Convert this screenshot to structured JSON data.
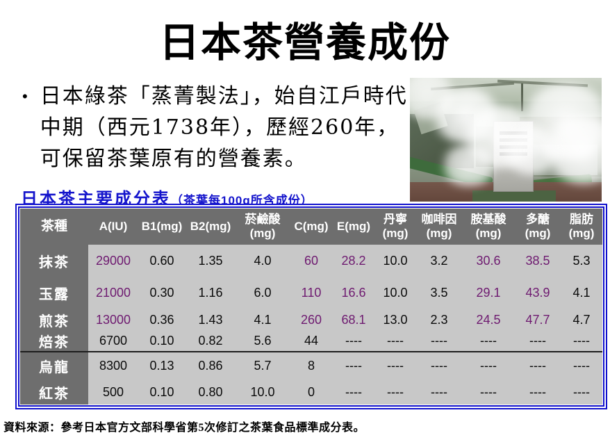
{
  "slide": {
    "title": "日本茶營養成份",
    "bullet_marker": "•",
    "bullet_text": "日本綠茶「蒸菁製法」，始自江戶時代中期（西元1738年），歷經260年，可保留茶葉原有的營養素。"
  },
  "table_heading": {
    "main": "日本茶主要成分表",
    "sub": "（茶葉每100g所含成份）"
  },
  "table": {
    "headers": [
      [
        "茶種"
      ],
      [
        "A(IU)"
      ],
      [
        "B1(mg)"
      ],
      [
        "B2(mg)"
      ],
      [
        "菸鹼酸",
        "(mg)"
      ],
      [
        "C(mg)"
      ],
      [
        "E(mg)"
      ],
      [
        "丹寧",
        "(mg)"
      ],
      [
        "咖啡因",
        "(mg)"
      ],
      [
        "胺基酸",
        "(mg)"
      ],
      [
        "多醣",
        "(mg)"
      ],
      [
        "脂肪",
        "(mg)"
      ]
    ],
    "rows": [
      {
        "label": "抹茶",
        "values": [
          "29000",
          "0.60",
          "1.35",
          "4.0",
          "60",
          "28.2",
          "10.0",
          "3.2",
          "30.6",
          "38.5",
          "5.3"
        ]
      },
      {
        "label": "玉露",
        "values": [
          "21000",
          "0.30",
          "1.16",
          "6.0",
          "110",
          "16.6",
          "10.0",
          "3.5",
          "29.1",
          "43.9",
          "4.1"
        ]
      },
      {
        "label": "煎茶",
        "values": [
          "13000",
          "0.36",
          "1.43",
          "4.1",
          "260",
          "68.1",
          "13.0",
          "2.3",
          "24.5",
          "47.7",
          "4.7"
        ]
      },
      {
        "label": "焙茶",
        "values": [
          "6700",
          "0.10",
          "0.82",
          "5.6",
          "44",
          "----",
          "----",
          "----",
          "----",
          "----",
          "----"
        ]
      },
      {
        "label": "烏龍",
        "values": [
          "8300",
          "0.13",
          "0.86",
          "5.7",
          "8",
          "----",
          "----",
          "----",
          "----",
          "----",
          "----"
        ]
      },
      {
        "label": "紅茶",
        "values": [
          "500",
          "0.10",
          "0.80",
          "10.0",
          "0",
          "----",
          "----",
          "----",
          "----",
          "----",
          "----"
        ]
      }
    ],
    "purple_rows": [
      0,
      1,
      2
    ],
    "purple_cols": [
      0,
      4,
      5,
      8,
      9
    ]
  },
  "footer": {
    "source": "資料來源：參考日本官方文部科學省第5次修訂之茶葉食品標準成分表。"
  },
  "colors": {
    "accent_blue": "#1010cc",
    "heading_blue": "#1414cc",
    "value_purple": "#6e1a70",
    "header_gray": "#6e6e6e",
    "cell_gray": "#c8c8c8"
  }
}
